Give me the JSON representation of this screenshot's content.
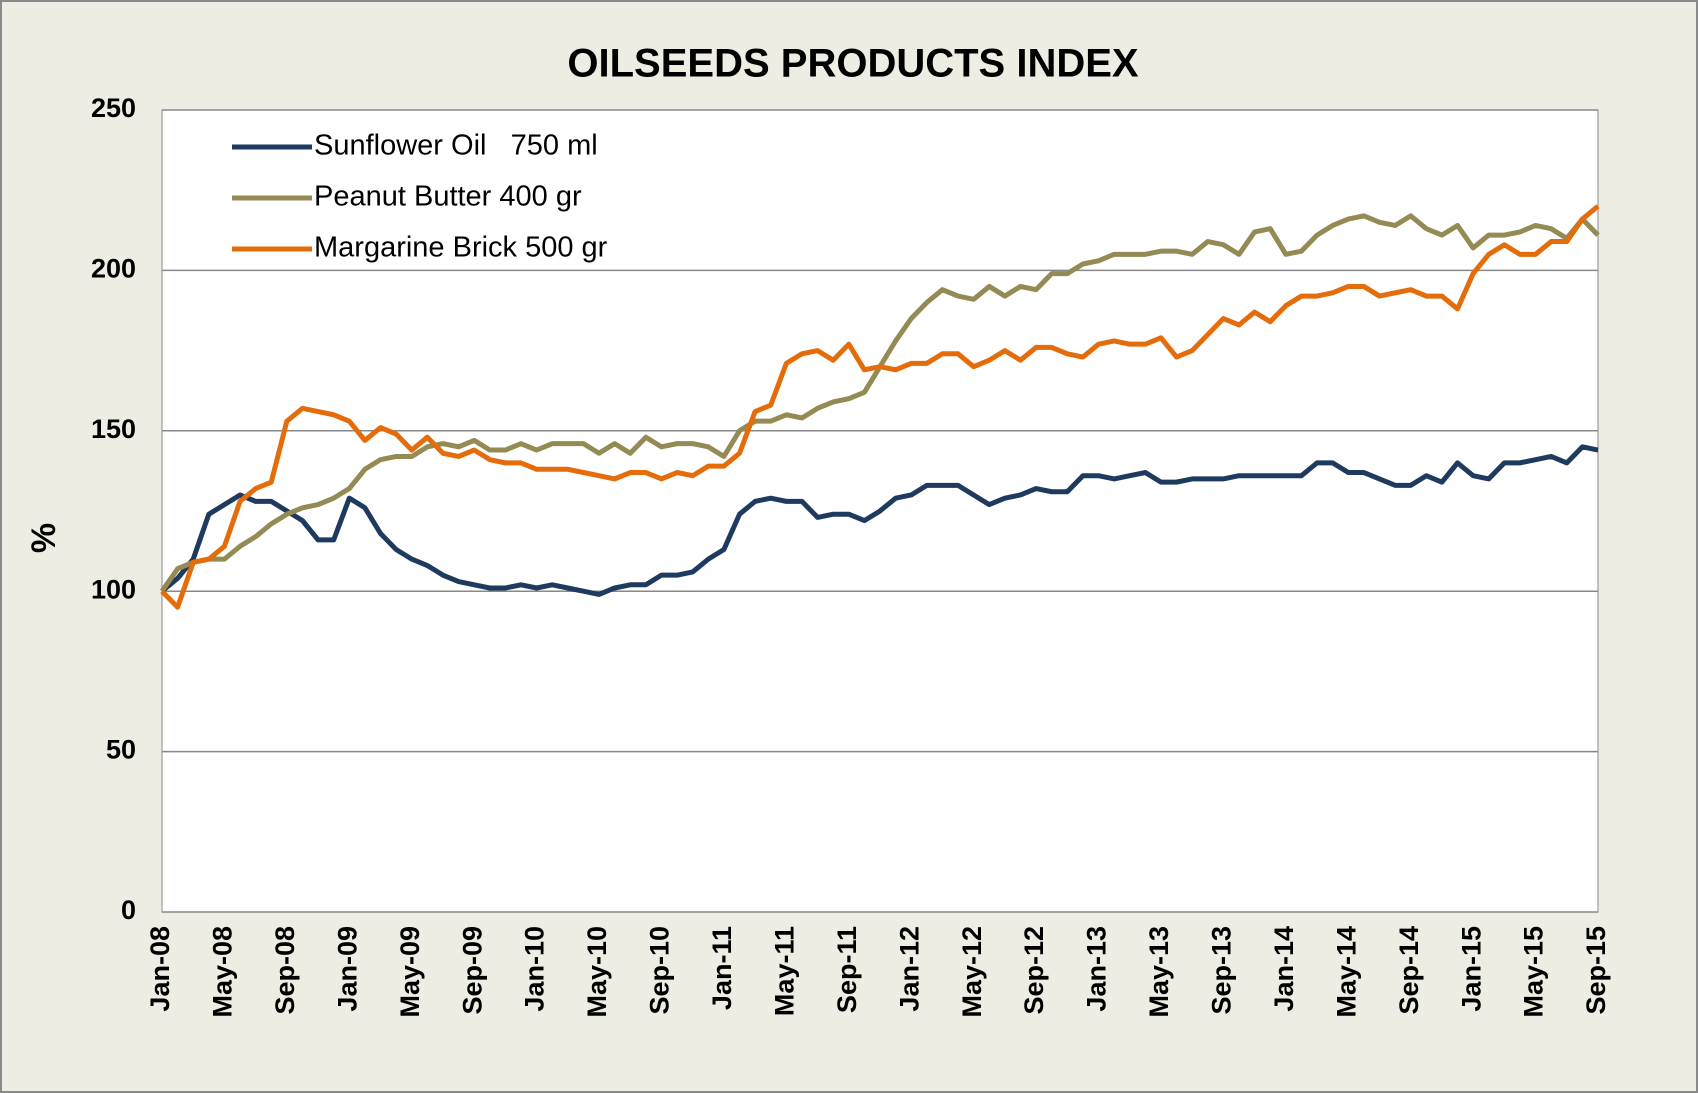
{
  "chart_data": {
    "type": "line",
    "title": "OILSEEDS PRODUCTS INDEX",
    "y_label": "%",
    "categories": [
      "Jan-08",
      null,
      null,
      null,
      "May-08",
      null,
      null,
      null,
      "Sep-08",
      null,
      null,
      null,
      "Jan-09",
      null,
      null,
      null,
      "May-09",
      null,
      null,
      null,
      "Sep-09",
      null,
      null,
      null,
      "Jan-10",
      null,
      null,
      null,
      "May-10",
      null,
      null,
      null,
      "Sep-10",
      null,
      null,
      null,
      "Jan-11",
      null,
      null,
      null,
      "May-11",
      null,
      null,
      null,
      "Sep-11",
      null,
      null,
      null,
      "Jan-12",
      null,
      null,
      null,
      "May-12",
      null,
      null,
      null,
      "Sep-12",
      null,
      null,
      null,
      "Jan-13",
      null,
      null,
      null,
      "May-13",
      null,
      null,
      null,
      "Sep-13",
      null,
      null,
      null,
      "Jan-14",
      null,
      null,
      null,
      "May-14",
      null,
      null,
      null,
      "Sep-14",
      null,
      null,
      null,
      "Jan-15",
      null,
      null,
      null,
      "May-15",
      null,
      null,
      null,
      "Sep-15"
    ],
    "series": [
      {
        "name": "Sunflower Oil   750 ml",
        "color": "#1f3a5f",
        "values": [
          100,
          104,
          110,
          124,
          127,
          130,
          128,
          128,
          125,
          122,
          116,
          116,
          129,
          126,
          118,
          113,
          110,
          108,
          105,
          103,
          102,
          101,
          101,
          102,
          101,
          102,
          101,
          100,
          99,
          101,
          102,
          102,
          105,
          105,
          106,
          110,
          113,
          124,
          128,
          129,
          128,
          128,
          123,
          124,
          124,
          122,
          125,
          129,
          130,
          133,
          133,
          133,
          130,
          127,
          129,
          130,
          132,
          131,
          131,
          136,
          136,
          135,
          136,
          137,
          134,
          134,
          135,
          135,
          135,
          136,
          136,
          136,
          136,
          136,
          140,
          140,
          137,
          137,
          135,
          133,
          133,
          136,
          134,
          140,
          136,
          135,
          140,
          140,
          141,
          142,
          140,
          145,
          144
        ]
      },
      {
        "name": "Peanut Butter 400 gr",
        "color": "#948a54",
        "values": [
          100,
          107,
          109,
          110,
          110,
          114,
          117,
          121,
          124,
          126,
          127,
          129,
          132,
          138,
          141,
          142,
          142,
          145,
          146,
          145,
          147,
          144,
          144,
          146,
          144,
          146,
          146,
          146,
          143,
          146,
          143,
          148,
          145,
          146,
          146,
          145,
          142,
          150,
          153,
          153,
          155,
          154,
          157,
          159,
          160,
          162,
          170,
          178,
          185,
          190,
          194,
          192,
          191,
          195,
          192,
          195,
          194,
          199,
          199,
          202,
          203,
          205,
          205,
          205,
          206,
          206,
          205,
          209,
          208,
          205,
          212,
          213,
          205,
          206,
          211,
          214,
          216,
          217,
          215,
          214,
          217,
          213,
          211,
          214,
          207,
          211,
          211,
          212,
          214,
          213,
          210,
          216,
          211
        ]
      },
      {
        "name": "Margarine Brick 500 gr",
        "color": "#e46c0a",
        "values": [
          100,
          95,
          109,
          110,
          114,
          128,
          132,
          134,
          153,
          157,
          156,
          155,
          153,
          147,
          151,
          149,
          144,
          148,
          143,
          142,
          144,
          141,
          140,
          140,
          138,
          138,
          138,
          137,
          136,
          135,
          137,
          137,
          135,
          137,
          136,
          139,
          139,
          143,
          156,
          158,
          171,
          174,
          175,
          172,
          177,
          169,
          170,
          169,
          171,
          171,
          174,
          174,
          170,
          172,
          175,
          172,
          176,
          176,
          174,
          173,
          177,
          178,
          177,
          177,
          179,
          173,
          175,
          180,
          185,
          183,
          187,
          184,
          189,
          192,
          192,
          193,
          195,
          195,
          192,
          193,
          194,
          192,
          192,
          188,
          199,
          205,
          208,
          205,
          205,
          209,
          209,
          216,
          220
        ]
      }
    ],
    "ylim": [
      0,
      250
    ],
    "yticks": [
      0,
      50,
      100,
      150,
      200,
      250
    ],
    "grid": true,
    "legend": "upper left"
  }
}
